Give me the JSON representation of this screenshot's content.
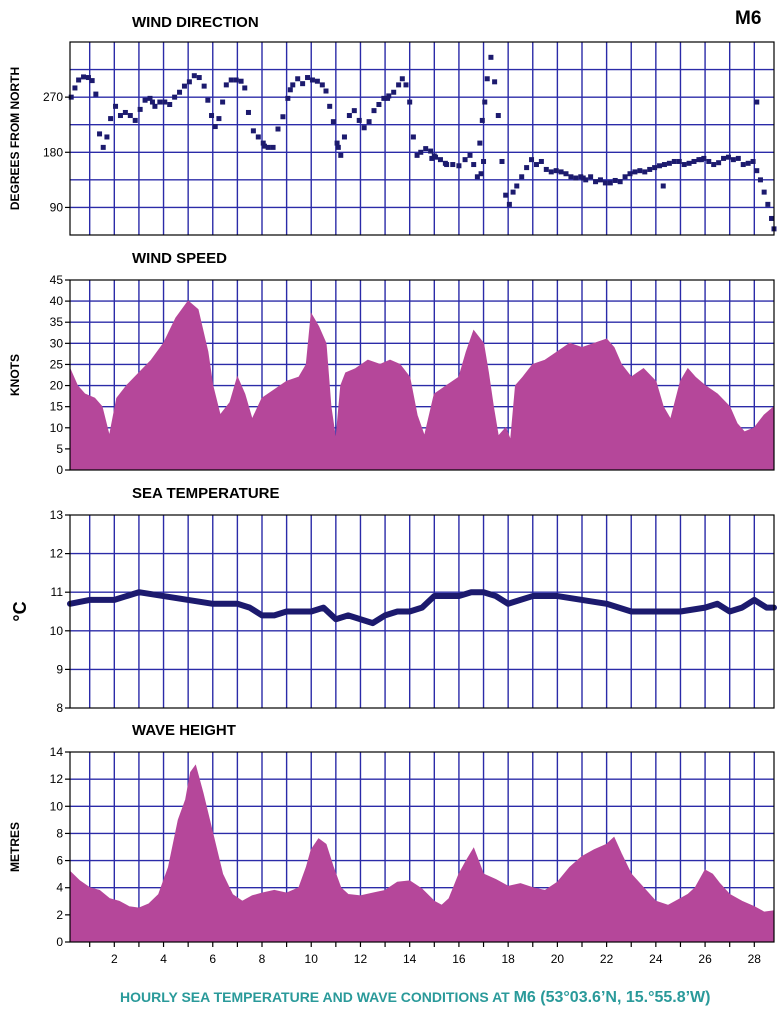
{
  "station_label": "M6",
  "caption": {
    "prefix": "HOURLY SEA TEMPERATURE AND WAVE CONDITIONS AT ",
    "station": "M6",
    "coords": " (53°03.6’N, 15.°55.8’W)"
  },
  "colors": {
    "grid": "#2b2ba8",
    "fill": "#b5479a",
    "marker": "#1c1a6e",
    "caption": "#2a9a9a"
  },
  "x_axis": {
    "range": [
      0.2,
      28.8
    ],
    "ticks": [
      2,
      4,
      6,
      8,
      10,
      12,
      14,
      16,
      18,
      20,
      22,
      24,
      26,
      28
    ],
    "grid_step": 1
  },
  "chart_data": [
    {
      "type": "scatter",
      "title": "WIND DIRECTION",
      "ylabel": "DEGREES FROM NORTH",
      "ylim": [
        45,
        360
      ],
      "yticks": [
        90,
        180,
        270
      ],
      "ygrid": [
        90,
        135,
        180,
        225,
        270,
        315
      ],
      "grid": true,
      "points": [
        [
          0.25,
          270
        ],
        [
          0.4,
          285
        ],
        [
          0.55,
          298
        ],
        [
          0.75,
          303
        ],
        [
          0.95,
          302
        ],
        [
          1.1,
          297
        ],
        [
          1.25,
          275
        ],
        [
          1.4,
          210
        ],
        [
          1.55,
          188
        ],
        [
          1.7,
          205
        ],
        [
          1.85,
          235
        ],
        [
          2.05,
          255
        ],
        [
          2.25,
          240
        ],
        [
          2.45,
          245
        ],
        [
          2.65,
          240
        ],
        [
          2.85,
          232
        ],
        [
          3.05,
          250
        ],
        [
          3.25,
          265
        ],
        [
          3.45,
          268
        ],
        [
          3.65,
          255
        ],
        [
          3.85,
          262
        ],
        [
          4.05,
          262
        ],
        [
          4.25,
          258
        ],
        [
          4.45,
          270
        ],
        [
          4.65,
          278
        ],
        [
          4.85,
          288
        ],
        [
          5.05,
          295
        ],
        [
          5.25,
          305
        ],
        [
          5.45,
          302
        ],
        [
          5.65,
          288
        ],
        [
          5.8,
          265
        ],
        [
          5.95,
          240
        ],
        [
          6.1,
          222
        ],
        [
          6.25,
          235
        ],
        [
          6.4,
          262
        ],
        [
          6.55,
          290
        ],
        [
          6.75,
          298
        ],
        [
          6.95,
          298
        ],
        [
          7.15,
          296
        ],
        [
          7.3,
          285
        ],
        [
          7.45,
          245
        ],
        [
          7.65,
          215
        ],
        [
          7.85,
          205
        ],
        [
          8.05,
          195
        ],
        [
          8.25,
          188
        ],
        [
          8.45,
          188
        ],
        [
          8.65,
          218
        ],
        [
          8.85,
          238
        ],
        [
          9.05,
          268
        ],
        [
          9.25,
          290
        ],
        [
          9.45,
          300
        ],
        [
          9.65,
          292
        ],
        [
          9.85,
          302
        ],
        [
          10.05,
          298
        ],
        [
          10.25,
          296
        ],
        [
          10.45,
          290
        ],
        [
          10.6,
          280
        ],
        [
          10.75,
          255
        ],
        [
          10.9,
          230
        ],
        [
          11.05,
          195
        ],
        [
          11.2,
          175
        ],
        [
          11.35,
          205
        ],
        [
          11.55,
          240
        ],
        [
          11.75,
          248
        ],
        [
          11.95,
          232
        ],
        [
          12.15,
          220
        ],
        [
          12.35,
          230
        ],
        [
          12.55,
          248
        ],
        [
          12.75,
          258
        ],
        [
          12.95,
          268
        ],
        [
          13.15,
          272
        ],
        [
          13.35,
          278
        ],
        [
          13.55,
          290
        ],
        [
          13.7,
          300
        ],
        [
          13.85,
          290
        ],
        [
          14.0,
          262
        ],
        [
          14.15,
          205
        ],
        [
          14.3,
          175
        ],
        [
          14.45,
          180
        ],
        [
          14.65,
          186
        ],
        [
          14.85,
          182
        ],
        [
          15.05,
          172
        ],
        [
          15.25,
          168
        ],
        [
          15.5,
          160
        ],
        [
          15.75,
          160
        ],
        [
          16.0,
          158
        ],
        [
          16.25,
          168
        ],
        [
          16.45,
          175
        ],
        [
          16.6,
          160
        ],
        [
          16.75,
          140
        ],
        [
          16.9,
          145
        ],
        [
          17.0,
          165
        ],
        [
          16.85,
          195
        ],
        [
          16.95,
          232
        ],
        [
          17.05,
          262
        ],
        [
          17.15,
          300
        ],
        [
          17.3,
          335
        ],
        [
          17.45,
          295
        ],
        [
          17.6,
          240
        ],
        [
          17.75,
          165
        ],
        [
          17.9,
          110
        ],
        [
          18.05,
          95
        ],
        [
          18.2,
          115
        ],
        [
          18.35,
          125
        ],
        [
          18.55,
          140
        ],
        [
          18.75,
          155
        ],
        [
          18.95,
          168
        ],
        [
          19.15,
          160
        ],
        [
          19.35,
          165
        ],
        [
          19.55,
          152
        ],
        [
          19.75,
          148
        ],
        [
          19.95,
          150
        ],
        [
          20.15,
          148
        ],
        [
          20.35,
          145
        ],
        [
          20.55,
          140
        ],
        [
          20.75,
          138
        ],
        [
          20.95,
          140
        ],
        [
          21.15,
          135
        ],
        [
          21.35,
          140
        ],
        [
          21.55,
          132
        ],
        [
          21.75,
          135
        ],
        [
          21.95,
          130
        ],
        [
          22.15,
          130
        ],
        [
          22.35,
          134
        ],
        [
          22.55,
          132
        ],
        [
          22.75,
          140
        ],
        [
          22.95,
          145
        ],
        [
          23.15,
          148
        ],
        [
          23.35,
          150
        ],
        [
          23.55,
          148
        ],
        [
          23.75,
          152
        ],
        [
          23.95,
          155
        ],
        [
          24.15,
          158
        ],
        [
          24.35,
          160
        ],
        [
          24.55,
          162
        ],
        [
          24.75,
          165
        ],
        [
          24.95,
          165
        ],
        [
          25.15,
          160
        ],
        [
          25.35,
          162
        ],
        [
          25.55,
          165
        ],
        [
          25.75,
          168
        ],
        [
          25.95,
          170
        ],
        [
          26.15,
          165
        ],
        [
          26.35,
          160
        ],
        [
          26.55,
          163
        ],
        [
          26.75,
          170
        ],
        [
          26.95,
          172
        ],
        [
          27.15,
          168
        ],
        [
          27.35,
          170
        ],
        [
          27.55,
          160
        ],
        [
          27.75,
          162
        ],
        [
          27.95,
          165
        ],
        [
          28.1,
          150
        ],
        [
          28.25,
          135
        ],
        [
          28.4,
          115
        ],
        [
          28.55,
          95
        ],
        [
          28.7,
          72
        ],
        [
          28.8,
          55
        ],
        [
          28.1,
          262
        ],
        [
          24.3,
          125
        ],
        [
          14.9,
          170
        ],
        [
          15.0,
          174
        ],
        [
          13.1,
          268
        ],
        [
          3.55,
          262
        ],
        [
          8.1,
          190
        ],
        [
          9.15,
          282
        ],
        [
          11.1,
          188
        ],
        [
          15.45,
          162
        ],
        [
          21.05,
          138
        ],
        [
          25.85,
          168
        ]
      ]
    },
    {
      "type": "area",
      "title": "WIND SPEED",
      "ylabel": "KNOTS",
      "ylim": [
        0,
        45
      ],
      "yticks": [
        0,
        5,
        10,
        15,
        20,
        25,
        30,
        35,
        40,
        45
      ],
      "ygrid": [
        5,
        10,
        15,
        20,
        25,
        30,
        35,
        40
      ],
      "grid": true,
      "x": [
        0.2,
        0.5,
        0.8,
        1.2,
        1.5,
        1.8,
        2.1,
        2.5,
        3,
        3.5,
        4,
        4.5,
        5,
        5.4,
        5.8,
        6.0,
        6.3,
        6.7,
        7.0,
        7.3,
        7.6,
        8,
        8.5,
        9,
        9.5,
        9.8,
        10.0,
        10.3,
        10.6,
        10.8,
        11,
        11.2,
        11.4,
        11.8,
        12.3,
        12.8,
        13.2,
        13.6,
        14,
        14.3,
        14.6,
        15,
        15.5,
        16,
        16.3,
        16.6,
        17,
        17.2,
        17.4,
        17.6,
        17.9,
        18.1,
        18.3,
        18.6,
        19,
        19.5,
        20,
        20.5,
        21,
        21.5,
        22,
        22.3,
        22.6,
        23,
        23.5,
        24,
        24.3,
        24.6,
        25,
        25.3,
        25.6,
        26,
        26.5,
        27,
        27.3,
        27.6,
        28,
        28.4,
        28.8
      ],
      "values": [
        24,
        20,
        18,
        17,
        15,
        8,
        17,
        20,
        23,
        26,
        30,
        36,
        40,
        38,
        28,
        20,
        13,
        16,
        22,
        18,
        12,
        17,
        19,
        21,
        22,
        25,
        37,
        34,
        30,
        15,
        7,
        20,
        23,
        24,
        26,
        25,
        26,
        25,
        22,
        13,
        8,
        18,
        20,
        22,
        28,
        33,
        30,
        23,
        15,
        8,
        10,
        7,
        20,
        22,
        25,
        26,
        28,
        30,
        29,
        30,
        31,
        29,
        25,
        22,
        24,
        21,
        15,
        12,
        21,
        24,
        22,
        20,
        18,
        15,
        11,
        9,
        10,
        13,
        15
      ]
    },
    {
      "type": "line",
      "title": "SEA TEMPERATURE",
      "ylabel": "°C",
      "ylim": [
        8,
        13
      ],
      "yticks": [
        8,
        9,
        10,
        11,
        12,
        13
      ],
      "ygrid": [
        9,
        10,
        11,
        12
      ],
      "grid": true,
      "x": [
        0.2,
        1,
        2,
        3,
        4,
        5,
        6,
        7,
        7.5,
        8,
        8.5,
        9,
        9.5,
        10,
        10.5,
        11,
        11.5,
        12,
        12.5,
        13,
        13.5,
        14,
        14.5,
        15,
        15.5,
        16,
        16.5,
        17,
        17.5,
        18,
        18.5,
        19,
        20,
        21,
        22,
        23,
        24,
        25,
        26,
        26.5,
        27,
        27.5,
        28,
        28.5,
        28.8
      ],
      "values": [
        10.7,
        10.8,
        10.8,
        11.0,
        10.9,
        10.8,
        10.7,
        10.7,
        10.6,
        10.4,
        10.4,
        10.5,
        10.5,
        10.5,
        10.6,
        10.3,
        10.4,
        10.3,
        10.2,
        10.4,
        10.5,
        10.5,
        10.6,
        10.9,
        10.9,
        10.9,
        11.0,
        11.0,
        10.9,
        10.7,
        10.8,
        10.9,
        10.9,
        10.8,
        10.7,
        10.5,
        10.5,
        10.5,
        10.6,
        10.7,
        10.5,
        10.6,
        10.8,
        10.6,
        10.6
      ]
    },
    {
      "type": "area",
      "title": "WAVE HEIGHT",
      "ylabel": "METRES",
      "ylim": [
        0,
        14
      ],
      "yticks": [
        0,
        2,
        4,
        6,
        8,
        10,
        12,
        14
      ],
      "ygrid": [
        2,
        4,
        6,
        8,
        10,
        12
      ],
      "grid": true,
      "x": [
        0.2,
        0.6,
        1.0,
        1.4,
        1.8,
        2.2,
        2.6,
        3.0,
        3.4,
        3.8,
        4.2,
        4.6,
        4.9,
        5.1,
        5.3,
        5.6,
        6.0,
        6.4,
        6.8,
        7.2,
        7.6,
        8,
        8.5,
        9,
        9.5,
        9.8,
        10,
        10.3,
        10.6,
        10.9,
        11.2,
        11.5,
        12,
        12.5,
        13,
        13.5,
        14,
        14.5,
        15,
        15.3,
        15.6,
        16,
        16.3,
        16.6,
        17,
        17.5,
        18,
        18.5,
        19,
        19.5,
        20,
        20.5,
        21,
        21.5,
        22,
        22.3,
        22.6,
        23,
        23.5,
        24,
        24.5,
        25,
        25.3,
        25.6,
        26,
        26.3,
        26.6,
        27,
        27.5,
        28,
        28.4,
        28.8
      ],
      "values": [
        5.2,
        4.5,
        4.0,
        3.8,
        3.2,
        3.0,
        2.6,
        2.5,
        2.8,
        3.5,
        5.5,
        9.0,
        10.5,
        12.5,
        13.0,
        11.0,
        8.0,
        5.0,
        3.5,
        3.0,
        3.4,
        3.6,
        3.8,
        3.6,
        4.0,
        5.5,
        6.8,
        7.6,
        7.2,
        5.5,
        4.0,
        3.5,
        3.4,
        3.6,
        3.8,
        4.4,
        4.5,
        3.9,
        3.0,
        2.7,
        3.2,
        5.0,
        6.0,
        6.9,
        5.0,
        4.6,
        4.1,
        4.3,
        4.0,
        3.8,
        4.4,
        5.5,
        6.3,
        6.8,
        7.2,
        7.7,
        6.5,
        5.0,
        4.0,
        3.0,
        2.7,
        3.2,
        3.5,
        4.0,
        5.3,
        5.0,
        4.3,
        3.5,
        3.0,
        2.6,
        2.2,
        2.3
      ]
    }
  ]
}
